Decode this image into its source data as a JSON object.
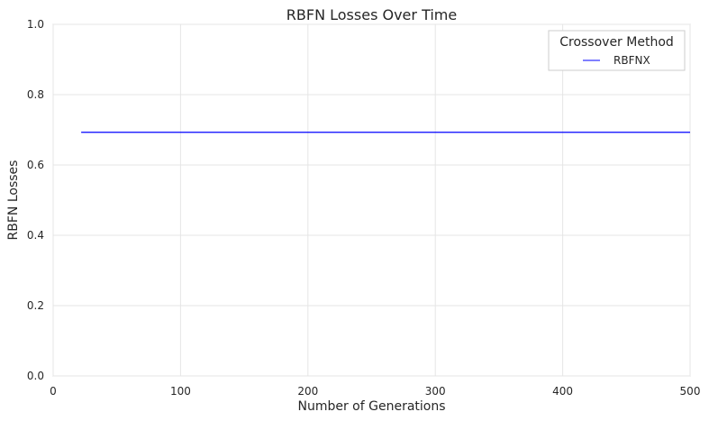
{
  "chart_data": {
    "type": "line",
    "title": "RBFN Losses Over Time",
    "xlabel": "Number of Generations",
    "ylabel": "RBFN Losses",
    "xlim": [
      0,
      500
    ],
    "ylim": [
      0.0,
      1.0
    ],
    "xticks": [
      "0",
      "100",
      "200",
      "300",
      "400",
      "500"
    ],
    "yticks": [
      "0.0",
      "0.2",
      "0.4",
      "0.6",
      "0.8",
      "1.0"
    ],
    "grid": true,
    "legend": {
      "title": "Crossover Method",
      "placement": "top-right"
    },
    "series": [
      {
        "name": "RBFNX",
        "color": "#0000ff",
        "x": [
          22,
          50,
          100,
          150,
          200,
          250,
          300,
          350,
          400,
          450,
          500
        ],
        "y": [
          0.693,
          0.693,
          0.693,
          0.693,
          0.693,
          0.693,
          0.693,
          0.693,
          0.693,
          0.693,
          0.693
        ]
      }
    ]
  }
}
